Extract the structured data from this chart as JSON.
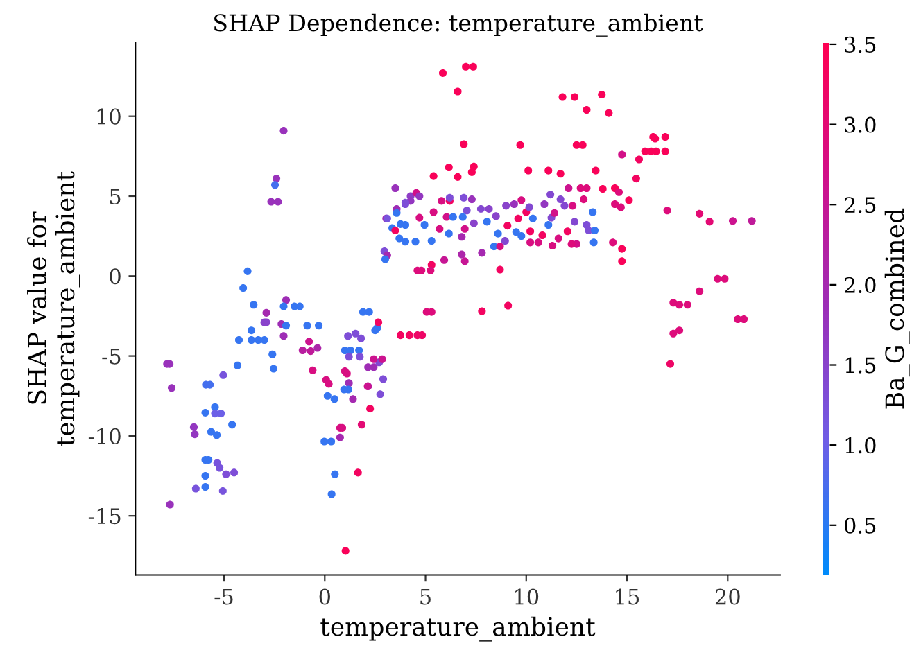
{
  "chart_data": {
    "type": "scatter",
    "title": "SHAP Dependence: temperature_ambient",
    "xlabel": "temperature_ambient",
    "ylabel": "SHAP value for\ntemperature_ambient",
    "clabel": "Ba_G_combined",
    "xlim": [
      -9.4,
      22.6
    ],
    "ylim": [
      -18.7,
      14.6
    ],
    "xticks": [
      -5,
      0,
      5,
      10,
      15,
      20
    ],
    "yticks": [
      -15,
      -10,
      -5,
      0,
      5,
      10
    ],
    "clim": [
      0.19,
      3.51
    ],
    "cticks": [
      0.5,
      {
        "value": 1,
        "label": "1.0"
      },
      1.5,
      {
        "value": 2,
        "label": "2.0"
      },
      2.5,
      {
        "value": 3,
        "label": "3.0"
      },
      3.5
    ],
    "grid": false,
    "marker": "circle",
    "series": [
      {
        "x": [
          -2.04,
          -2.4,
          -2.47,
          -2.66,
          -2.32,
          -3.83,
          -4.05,
          -3.53,
          -1.92,
          -2.04,
          -1.5,
          -1.24,
          -2.9,
          -3.0,
          -2.9,
          -2.15,
          -1.92,
          -0.87,
          -0.3,
          -3.64,
          -4.26,
          -3.64,
          -3.3,
          -3.0,
          -2.04,
          -2.6,
          -2.54,
          -4.33,
          -7.83,
          -7.7,
          -7.6,
          -5.04,
          -5.9,
          -5.7,
          -5.93,
          -5.45,
          -5.45,
          -5.15,
          -4.6,
          -6.5,
          -6.45,
          -5.64,
          -5.36,
          -5.93,
          -5.77,
          -5.34,
          -5.22,
          -4.9,
          -4.5,
          -5.93,
          -6.4,
          -5.93,
          -5.06,
          -7.68,
          1.03,
          0.5,
          0.34,
          1.65,
          -0.02,
          0.32,
          0.76,
          0.87,
          0.76,
          1.83,
          2.25,
          2.75,
          0.14,
          0.48,
          2.15,
          1.0,
          1.1,
          0.07,
          0.2,
          -0.6,
          -0.78,
          -0.7,
          -1.1,
          -0.36,
          1.2,
          1.17,
          0.96,
          1.4,
          1.0,
          1.28,
          1.7,
          1.2,
          1.74,
          2.15,
          2.43,
          2.7,
          2.9,
          2.43,
          2.85,
          1.15,
          1.53,
          1.8,
          1.9,
          2.2,
          2.5,
          2.6,
          2.66,
          3.76,
          4.2,
          4.6,
          4.83,
          2.13,
          3.5,
          4.26,
          4.0,
          3.57,
          3.57,
          3.05,
          3.35,
          3.5,
          3.76,
          3.7,
          4.0,
          2.96,
          3.1,
          3.0,
          5.86,
          7.0,
          7.37,
          6.6,
          11.8,
          12.4,
          13.75,
          13.0,
          14.1,
          6.9,
          9.7,
          12.5,
          12.8,
          14.75,
          6.16,
          7.4,
          7.3,
          5.4,
          6.6,
          10.1,
          11.1,
          11.7,
          13.45,
          12.7,
          13.0,
          13.8,
          12.1,
          14.4,
          14.6,
          15.1,
          14.4,
          14.7,
          14.75,
          14.75,
          14.3,
          4.54,
          4.26,
          4.7,
          4.0,
          3.1,
          4.0,
          4.5,
          4.7,
          5.3,
          4.95,
          5.4,
          5.8,
          6.2,
          6.2,
          6.05,
          5.7,
          6.37,
          6.16,
          6.9,
          7.3,
          7.05,
          6.85,
          6.95,
          6.8,
          6.8,
          6.95,
          5.93,
          5.3,
          5.25,
          4.6,
          4.8,
          7.8,
          7.4,
          7.75,
          8.05,
          8.15,
          8.5,
          8.7,
          8.4,
          8.7,
          8.6,
          8.95,
          9.07,
          9.0,
          9.4,
          9.6,
          9.76,
          9.5,
          9.76,
          10.0,
          10.15,
          10.33,
          10.2,
          10.2,
          10.6,
          10.8,
          11.1,
          11.25,
          11.2,
          10.9,
          11.4,
          11.6,
          11.3,
          11.7,
          11.9,
          12.05,
          12.4,
          12.3,
          12.5,
          12.25,
          12.85,
          13.0,
          13.1,
          13.3,
          13.4,
          13.35,
          7.8,
          9.1,
          5.06,
          5.3,
          16.3,
          16.4,
          16.9,
          15.9,
          16.2,
          16.45,
          16.9,
          15.6,
          15.46,
          17.0,
          18.6,
          19.1,
          20.25,
          21.2,
          18.6,
          19.5,
          19.85,
          17.3,
          17.6,
          18.0,
          17.3,
          17.6,
          20.5,
          20.8,
          17.15
        ],
        "values": [
          9.09,
          6.1,
          5.7,
          4.65,
          4.65,
          0.3,
          -0.75,
          -1.8,
          -1.5,
          -1.9,
          -1.9,
          -1.9,
          -2.3,
          -2.9,
          -2.9,
          -3.0,
          -3.1,
          -3.1,
          -3.1,
          -3.4,
          -4.0,
          -4.0,
          -4.0,
          -4.0,
          -3.75,
          -4.9,
          -5.8,
          -5.6,
          -5.5,
          -5.5,
          -7.0,
          -6.2,
          -6.8,
          -6.8,
          -8.55,
          -8.2,
          -8.6,
          -8.6,
          -9.3,
          -9.45,
          -9.9,
          -9.75,
          -9.95,
          -11.5,
          -11.5,
          -11.7,
          -12.0,
          -12.4,
          -12.3,
          -12.5,
          -13.3,
          -13.2,
          -13.45,
          -14.3,
          -17.2,
          -12.4,
          -13.65,
          -12.3,
          -10.35,
          -10.35,
          -9.5,
          -9.5,
          -10.1,
          -9.3,
          -8.3,
          -7.4,
          -7.5,
          -7.7,
          -6.9,
          -5.95,
          -6.1,
          -6.5,
          -6.75,
          -5.9,
          -4.1,
          -4.7,
          -4.65,
          -4.5,
          -6.7,
          -7.1,
          -7.1,
          -7.7,
          -4.65,
          -4.65,
          -4.65,
          -5.05,
          -5.05,
          -5.7,
          -5.7,
          -5.4,
          -6.45,
          -5.2,
          -5.2,
          -3.75,
          -3.6,
          -3.9,
          -2.25,
          -2.25,
          -3.4,
          -3.25,
          -2.9,
          -3.7,
          -3.7,
          -3.7,
          -3.7,
          -6.9,
          5.5,
          5.0,
          4.5,
          4.2,
          3.95,
          3.6,
          3.0,
          2.85,
          3.25,
          2.35,
          2.15,
          1.55,
          1.3,
          1.05,
          12.7,
          13.1,
          13.1,
          11.55,
          11.2,
          11.2,
          11.35,
          10.4,
          10.2,
          8.25,
          8.2,
          8.2,
          8.2,
          7.6,
          6.8,
          6.85,
          6.5,
          6.25,
          6.2,
          6.6,
          6.6,
          6.4,
          6.6,
          5.5,
          5.5,
          5.45,
          5.5,
          5.5,
          5.25,
          4.75,
          4.5,
          4.3,
          1.7,
          0.93,
          2.1,
          5.2,
          4.7,
          5.0,
          4.6,
          3.6,
          3.2,
          2.15,
          3.65,
          2.2,
          3.2,
          4.0,
          4.7,
          4.7,
          4.9,
          3.7,
          2.95,
          3.7,
          2.65,
          4.9,
          4.8,
          4.1,
          3.7,
          2.95,
          2.45,
          1.35,
          0.93,
          1.0,
          0.7,
          0.35,
          0.35,
          0.35,
          1.45,
          3.3,
          4.2,
          3.4,
          4.2,
          3.75,
          0.4,
          1.85,
          1.85,
          2.65,
          2.2,
          3.15,
          4.4,
          4.5,
          3.6,
          4.75,
          2.75,
          2.5,
          4.0,
          4.3,
          3.6,
          2.8,
          2.1,
          2.1,
          2.55,
          3.2,
          3.65,
          5.1,
          4.5,
          3.95,
          2.35,
          1.9,
          4.8,
          4.4,
          2.8,
          3.4,
          4.4,
          2.0,
          2.0,
          4.8,
          3.2,
          2.85,
          4.0,
          2.85,
          2.1,
          -2.2,
          -1.85,
          -2.25,
          -2.25,
          8.7,
          8.6,
          8.7,
          7.8,
          7.8,
          7.8,
          7.8,
          7.3,
          6.1,
          4.1,
          3.9,
          3.4,
          3.45,
          3.45,
          -0.95,
          -0.17,
          -0.17,
          -1.67,
          -1.8,
          -1.8,
          -3.6,
          -3.4,
          -2.7,
          -2.7,
          -5.5
        ],
        "cvalues": [
          1.8,
          1.8,
          0.7,
          1.8,
          1.8,
          0.6,
          0.6,
          0.6,
          1.9,
          0.6,
          0.6,
          0.6,
          2.0,
          1.5,
          1.5,
          1.9,
          0.6,
          0.6,
          0.6,
          0.6,
          0.6,
          0.6,
          0.6,
          0.6,
          1.9,
          0.6,
          0.6,
          0.6,
          1.8,
          1.8,
          1.8,
          1.2,
          0.7,
          0.7,
          0.6,
          0.6,
          1.0,
          1.0,
          0.6,
          1.7,
          1.7,
          0.6,
          0.6,
          0.6,
          0.6,
          1.2,
          1.2,
          1.3,
          1.3,
          0.6,
          1.2,
          0.6,
          1.2,
          1.8,
          3.4,
          0.6,
          0.6,
          3.3,
          0.6,
          0.6,
          2.8,
          2.8,
          2.0,
          3.0,
          3.3,
          1.3,
          0.6,
          0.6,
          2.0,
          2.8,
          2.8,
          2.8,
          2.8,
          2.8,
          2.6,
          2.4,
          2.3,
          2.1,
          1.9,
          0.6,
          0.6,
          2.0,
          0.6,
          0.6,
          0.6,
          1.3,
          1.3,
          1.9,
          1.9,
          1.4,
          1.3,
          2.6,
          2.6,
          1.3,
          1.3,
          1.3,
          0.6,
          0.6,
          0.6,
          0.6,
          3.3,
          3.3,
          3.3,
          3.2,
          3.2,
          2.6,
          1.8,
          1.6,
          1.3,
          1.9,
          0.6,
          1.9,
          0.6,
          3.3,
          0.6,
          0.6,
          0.6,
          1.3,
          2.0,
          0.6,
          3.4,
          3.4,
          3.4,
          3.4,
          3.4,
          3.4,
          3.4,
          3.4,
          3.4,
          3.4,
          3.4,
          3.4,
          3.4,
          2.7,
          3.4,
          3.4,
          3.4,
          3.4,
          3.4,
          3.4,
          3.4,
          3.4,
          3.4,
          2.9,
          2.9,
          3.4,
          2.6,
          3.4,
          2.9,
          3.4,
          2.9,
          2.9,
          3.4,
          3.4,
          2.9,
          2.7,
          1.7,
          1.7,
          1.3,
          1.2,
          0.6,
          0.6,
          2.8,
          0.6,
          0.6,
          2.8,
          2.8,
          3.3,
          1.3,
          2.7,
          2.8,
          0.6,
          0.6,
          1.3,
          1.8,
          1.3,
          0.6,
          2.7,
          2.0,
          2.1,
          2.5,
          2.5,
          3.3,
          2.9,
          2.9,
          2.9,
          2.0,
          1.5,
          1.4,
          0.6,
          1.5,
          1.5,
          3.3,
          0.6,
          2.8,
          0.6,
          1.4,
          3.3,
          1.5,
          1.8,
          3.3,
          2.8,
          0.6,
          0.6,
          3.3,
          1.4,
          0.6,
          3.3,
          2.8,
          2.8,
          3.3,
          0.6,
          1.4,
          1.4,
          1.7,
          2.7,
          2.8,
          2.8,
          1.4,
          1.4,
          3.3,
          1.4,
          2.8,
          2.7,
          2.9,
          2.9,
          1.3,
          1.3,
          0.6,
          0.6,
          0.6,
          3.3,
          3.3,
          2.9,
          2.9,
          3.4,
          3.4,
          3.4,
          3.4,
          3.4,
          3.4,
          3.4,
          3.3,
          3.3,
          2.9,
          3.0,
          3.0,
          2.6,
          2.4,
          2.9,
          2.9,
          2.9,
          2.9,
          2.9,
          2.9,
          2.9,
          2.9,
          2.9,
          2.9,
          3.2
        ]
      }
    ]
  }
}
